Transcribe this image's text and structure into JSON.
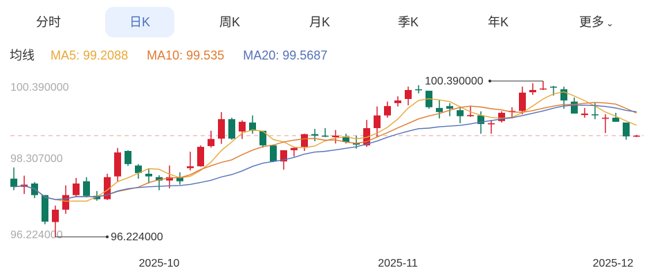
{
  "tabs": [
    {
      "label": "分时"
    },
    {
      "label": "日K",
      "active": true
    },
    {
      "label": "周K"
    },
    {
      "label": "月K"
    },
    {
      "label": "季K"
    },
    {
      "label": "年K"
    },
    {
      "label": "更多"
    }
  ],
  "legend": {
    "title": "均线",
    "ma5": "MA5: 99.2088",
    "ma10": "MA10: 99.535",
    "ma20": "MA20: 99.5687"
  },
  "colors": {
    "up": "#d81e2f",
    "down": "#0f7a60",
    "ma5": "#e8a838",
    "ma10": "#e07a30",
    "ma20": "#5572b8",
    "last_line": "#e8a0a0",
    "active_tab_bg": "#e8f1fd",
    "active_tab_text": "#4a6fc0"
  },
  "chart_data": {
    "type": "candlestick",
    "y_ticks": [
      "100.390000",
      "98.307000",
      "96.224000"
    ],
    "ylim": [
      96.224,
      100.39
    ],
    "x_ticks": [
      {
        "label": "2025-10",
        "index": 14
      },
      {
        "label": "2025-11",
        "index": 37
      },
      {
        "label": "2025-12",
        "index": 58
      }
    ],
    "max_label": "100.390000",
    "max_index": 51,
    "min_label": "96.224000",
    "min_index": 4,
    "last_close": 98.93,
    "ma_periods": [
      5,
      10,
      20
    ],
    "ohlc": [
      [
        97.78,
        98.08,
        97.47,
        97.56
      ],
      [
        97.56,
        97.86,
        97.37,
        97.62
      ],
      [
        97.65,
        97.69,
        97.26,
        97.34
      ],
      [
        97.34,
        97.34,
        96.56,
        96.63
      ],
      [
        96.62,
        97.06,
        96.224,
        96.95
      ],
      [
        96.95,
        97.6,
        96.84,
        97.34
      ],
      [
        97.34,
        97.8,
        97.28,
        97.65
      ],
      [
        97.71,
        97.82,
        97.28,
        97.32
      ],
      [
        97.32,
        97.45,
        97.19,
        97.23
      ],
      [
        97.23,
        97.91,
        97.21,
        97.82
      ],
      [
        97.84,
        98.6,
        97.71,
        98.48
      ],
      [
        98.52,
        98.54,
        98.12,
        98.17
      ],
      [
        98.13,
        98.17,
        97.78,
        97.93
      ],
      [
        97.91,
        98.04,
        97.65,
        97.84
      ],
      [
        97.82,
        97.87,
        97.47,
        97.73
      ],
      [
        97.73,
        98.13,
        97.52,
        97.82
      ],
      [
        97.82,
        97.95,
        97.62,
        97.71
      ],
      [
        98.06,
        98.5,
        98.0,
        98.11
      ],
      [
        98.11,
        98.67,
        98.1,
        98.63
      ],
      [
        98.65,
        99.06,
        98.61,
        98.84
      ],
      [
        98.85,
        99.56,
        98.71,
        99.37
      ],
      [
        99.37,
        99.41,
        98.82,
        98.85
      ],
      [
        99.04,
        99.34,
        98.84,
        99.3
      ],
      [
        99.28,
        99.47,
        98.98,
        99.06
      ],
      [
        99.06,
        99.06,
        98.61,
        98.67
      ],
      [
        98.67,
        98.69,
        98.22,
        98.24
      ],
      [
        98.24,
        98.54,
        98.02,
        98.54
      ],
      [
        98.54,
        98.63,
        98.37,
        98.6
      ],
      [
        98.63,
        98.98,
        98.52,
        98.97
      ],
      [
        98.97,
        99.11,
        98.78,
        98.93
      ],
      [
        98.93,
        99.13,
        98.89,
        98.91
      ],
      [
        98.89,
        99.08,
        98.72,
        98.93
      ],
      [
        98.91,
        98.98,
        98.72,
        98.76
      ],
      [
        98.74,
        98.93,
        98.58,
        98.69
      ],
      [
        98.67,
        99.35,
        98.63,
        99.13
      ],
      [
        99.13,
        99.71,
        98.89,
        99.47
      ],
      [
        99.47,
        99.84,
        99.41,
        99.72
      ],
      [
        99.8,
        99.98,
        99.71,
        99.87
      ],
      [
        99.91,
        100.24,
        99.74,
        100.15
      ],
      [
        100.17,
        100.28,
        100.06,
        100.15
      ],
      [
        100.13,
        100.13,
        99.65,
        99.69
      ],
      [
        99.67,
        99.87,
        99.39,
        99.56
      ],
      [
        99.72,
        99.8,
        99.45,
        99.65
      ],
      [
        99.61,
        99.71,
        99.26,
        99.45
      ],
      [
        99.45,
        99.71,
        99.43,
        99.48
      ],
      [
        99.47,
        99.58,
        98.98,
        99.24
      ],
      [
        99.24,
        99.35,
        98.98,
        99.26
      ],
      [
        99.32,
        99.58,
        99.28,
        99.54
      ],
      [
        99.56,
        99.69,
        99.39,
        99.59
      ],
      [
        99.59,
        100.24,
        99.5,
        100.08
      ],
      [
        100.09,
        100.33,
        100.02,
        100.15
      ],
      [
        100.17,
        100.39,
        100.15,
        100.19
      ],
      [
        100.24,
        100.26,
        100.0,
        100.22
      ],
      [
        100.17,
        100.24,
        99.65,
        99.87
      ],
      [
        99.84,
        99.95,
        99.52,
        99.52
      ],
      [
        99.48,
        99.67,
        99.41,
        99.52
      ],
      [
        99.5,
        99.8,
        99.37,
        99.48
      ],
      [
        99.39,
        99.5,
        99.0,
        99.41
      ],
      [
        99.41,
        99.54,
        99.3,
        99.3
      ],
      [
        99.28,
        99.28,
        98.82,
        98.91
      ],
      [
        98.91,
        98.95,
        98.89,
        98.93
      ]
    ]
  }
}
